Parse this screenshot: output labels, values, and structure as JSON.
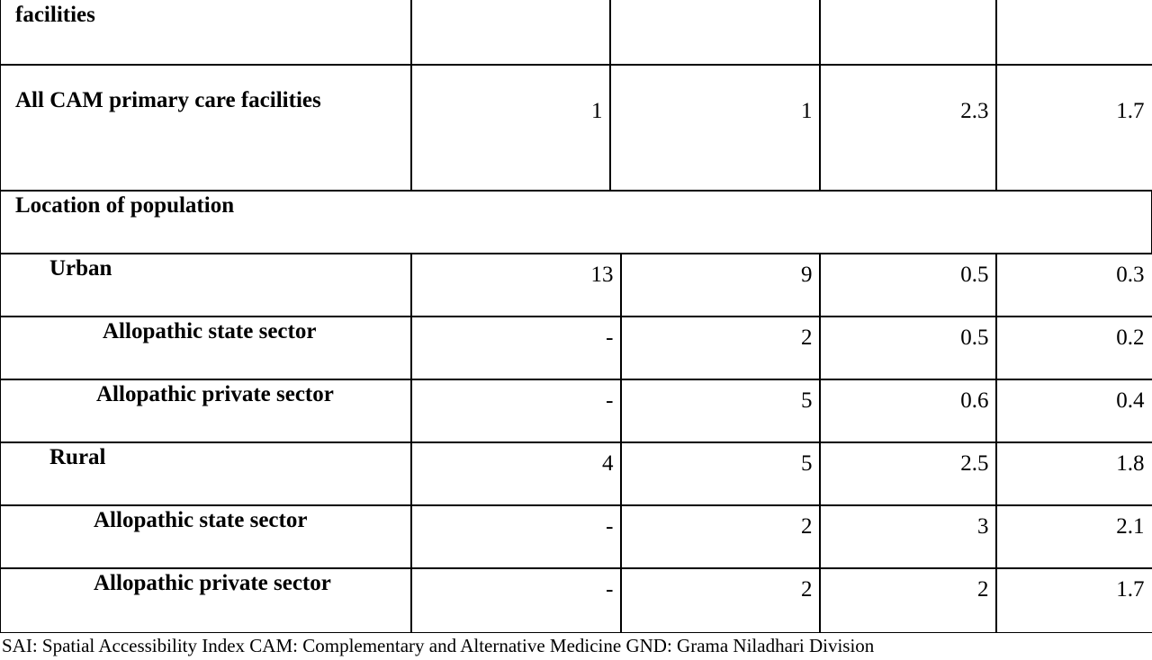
{
  "table": {
    "rows": [
      {
        "label": "facilities",
        "cells": []
      },
      {
        "label": "All CAM primary care facilities",
        "cells": [
          "1",
          "1",
          "2.3",
          "1.7"
        ]
      },
      {
        "label": "Location of population",
        "cells": []
      },
      {
        "label": "Urban",
        "cells": [
          "13",
          "9",
          "0.5",
          "0.3"
        ]
      },
      {
        "label": "Allopathic state sector",
        "cells": [
          "-",
          "2",
          "0.5",
          "0.2"
        ]
      },
      {
        "label": "Allopathic private sector",
        "cells": [
          "-",
          "5",
          "0.6",
          "0.4"
        ]
      },
      {
        "label": "Rural",
        "cells": [
          "4",
          "5",
          "2.5",
          "1.8"
        ]
      },
      {
        "label": "Allopathic state sector",
        "cells": [
          "-",
          "2",
          "3",
          "2.1"
        ]
      },
      {
        "label": "Allopathic private sector",
        "cells": [
          "-",
          "2",
          "2",
          "1.7"
        ]
      }
    ]
  },
  "footnote": "SAI: Spatial Accessibility Index   CAM: Complementary and Alternative Medicine   GND: Grama Niladhari Division"
}
